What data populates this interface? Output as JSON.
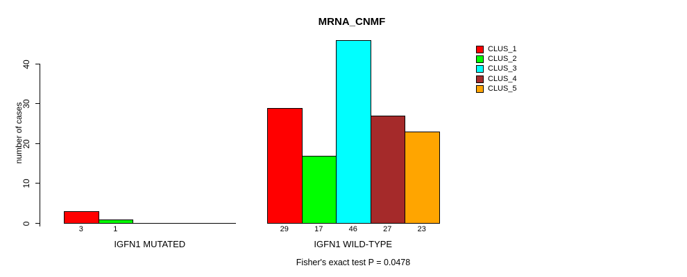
{
  "chart_data": {
    "type": "bar",
    "title": "MRNA_CNMF",
    "ylabel": "number of cases",
    "ylim": [
      0,
      46
    ],
    "yticks": [
      0,
      10,
      20,
      30,
      40
    ],
    "grid": false,
    "legend_position": "top-right",
    "legend": [
      "CLUS_1",
      "CLUS_2",
      "CLUS_3",
      "CLUS_4",
      "CLUS_5"
    ],
    "series_colors": [
      "#ff0000",
      "#00ff00",
      "#00ffff",
      "#a52a2a",
      "#ffa500"
    ],
    "groups": [
      {
        "label": "IGFN1 MUTATED",
        "values": [
          3,
          1,
          0,
          0,
          0
        ]
      },
      {
        "label": "IGFN1 WILD-TYPE",
        "values": [
          29,
          17,
          46,
          27,
          23
        ]
      }
    ],
    "annotation": "Fisher's exact test P = 0.0478"
  }
}
